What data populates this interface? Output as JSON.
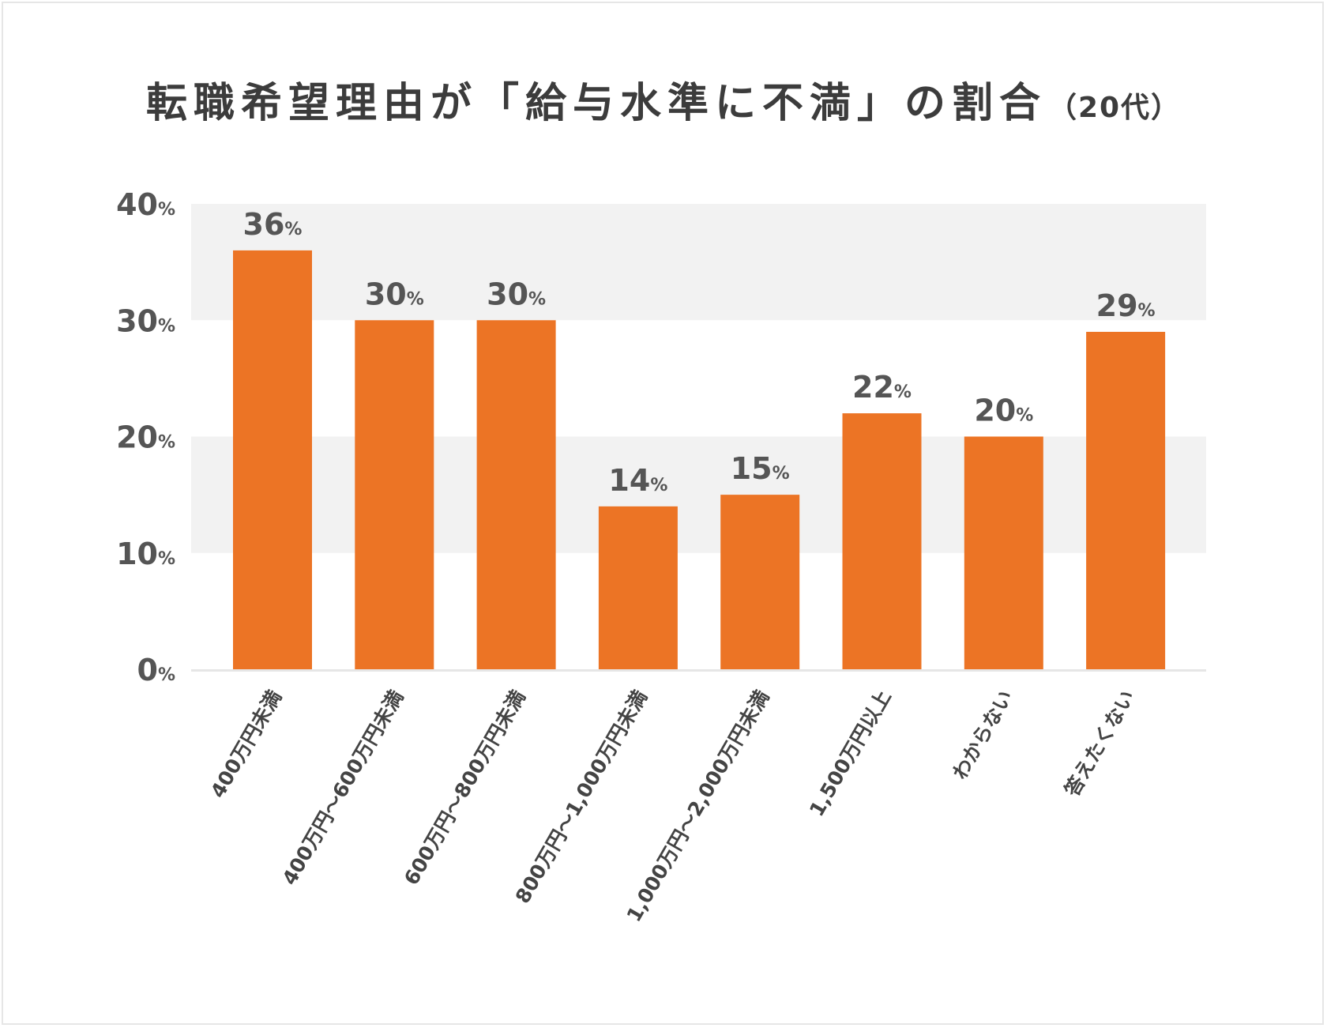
{
  "chart_data": {
    "type": "bar",
    "title": "転職希望理由が「給与水準に不満」の割合",
    "subtitle": "（20代）",
    "categories": [
      "400万円未満",
      "400万円～600万円未満",
      "600万円～800万円未満",
      "800万円～1,000万円未満",
      "1,000万円～2,000万円未満",
      "1,500万円以上",
      "わからない",
      "答えたくない"
    ],
    "values": [
      36,
      30,
      30,
      14,
      15,
      22,
      20,
      29
    ],
    "value_labels": [
      "36",
      "30",
      "30",
      "14",
      "15",
      "22",
      "20",
      "29"
    ],
    "unit": "%",
    "xlabel": "",
    "ylabel": "",
    "ylim": [
      0,
      40
    ],
    "yticks": [
      0,
      10,
      20,
      30,
      40
    ],
    "ytick_labels": [
      "0",
      "10",
      "20",
      "30",
      "40"
    ],
    "grid": "alternating-bands",
    "legend": "none",
    "colors": {
      "bar": "#ec7425",
      "band": "#f2f2f2",
      "text": "#555555",
      "title": "#3c3c3c",
      "axis": "#e6e6e6"
    }
  }
}
